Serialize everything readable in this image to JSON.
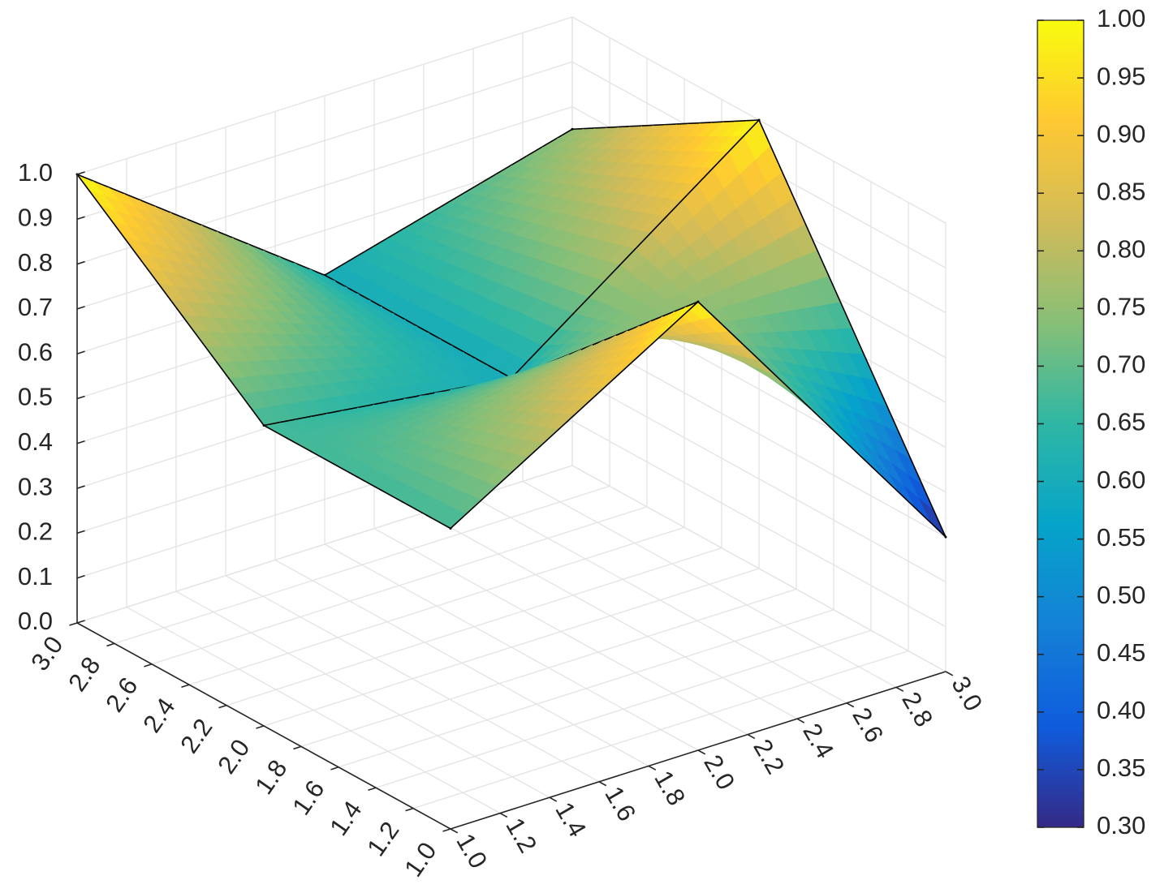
{
  "chart_data": {
    "type": "surface",
    "x": [
      1,
      2,
      3
    ],
    "y": [
      1,
      2,
      3
    ],
    "z": [
      [
        0.67,
        1.0,
        0.3
      ],
      [
        0.67,
        0.6,
        1.0
      ],
      [
        1.0,
        0.6,
        0.75
      ]
    ],
    "xlim": [
      1,
      3
    ],
    "ylim": [
      1,
      3
    ],
    "zlim": [
      0,
      1
    ],
    "xticks": [
      {
        "value": 1.0,
        "label": "1.0"
      },
      1.2,
      1.4,
      1.6,
      1.8,
      {
        "value": 2.0,
        "label": "2.0"
      },
      2.2,
      2.4,
      2.6,
      2.8,
      {
        "value": 3.0,
        "label": "3.0"
      }
    ],
    "yticks": [
      {
        "value": 1.0,
        "label": "1.0"
      },
      1.2,
      1.4,
      1.6,
      1.8,
      {
        "value": 2.0,
        "label": "2.0"
      },
      2.2,
      2.4,
      2.6,
      2.8,
      {
        "value": 3.0,
        "label": "3.0"
      }
    ],
    "zticks": [
      {
        "value": 0,
        "label": "0.0"
      },
      0.1,
      0.2,
      0.3,
      0.4,
      0.5,
      0.6,
      0.7,
      0.8,
      0.9,
      {
        "value": 1,
        "label": "1.0"
      }
    ],
    "colormap": "parula",
    "grid": true,
    "colorbar": true,
    "clim": [
      0.3,
      1.0
    ],
    "cticks": [
      {
        "value": 0.3,
        "label": "0.30"
      },
      0.35,
      {
        "value": 0.4,
        "label": "0.40"
      },
      0.45,
      {
        "value": 0.5,
        "label": "0.50"
      },
      0.55,
      {
        "value": 0.6,
        "label": "0.60"
      },
      0.65,
      {
        "value": 0.7,
        "label": "0.70"
      },
      0.75,
      {
        "value": 0.8,
        "label": "0.80"
      },
      0.85,
      {
        "value": 0.9,
        "label": "0.90"
      },
      0.95,
      {
        "value": 1.0,
        "label": "1.00"
      }
    ]
  }
}
